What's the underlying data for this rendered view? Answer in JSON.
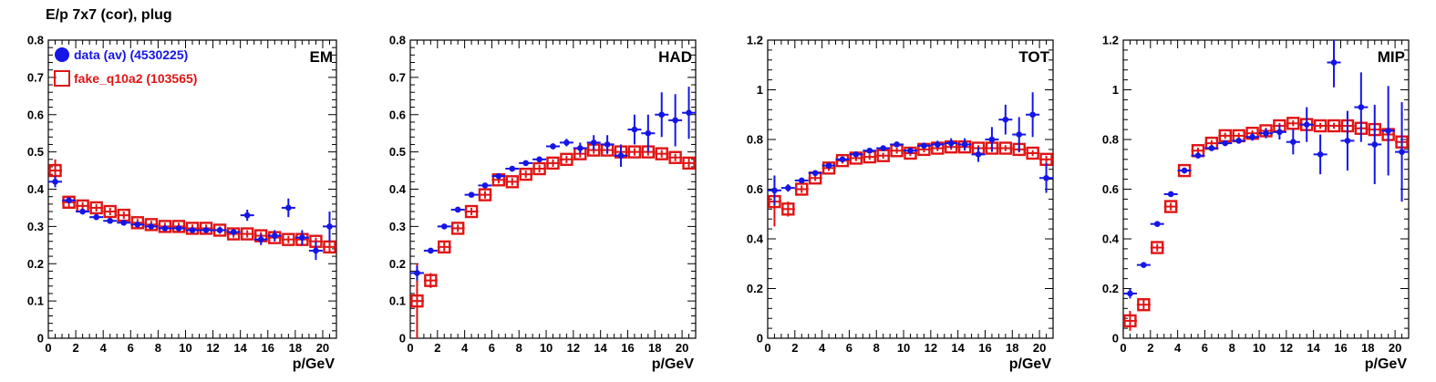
{
  "page": {
    "title": "E/p 7x7 (cor), plug"
  },
  "colors": {
    "data": "#1515e6",
    "fake": "#e01414",
    "axis": "#000000"
  },
  "chart_data": [
    {
      "type": "scatter",
      "panel_label": "EM",
      "xlabel": "p/GeV",
      "ylabel": "",
      "xlim": [
        0,
        21
      ],
      "ylim": [
        0,
        0.8
      ],
      "xticks": [
        "0",
        "2",
        "4",
        "6",
        "8",
        "10",
        "12",
        "14",
        "16",
        "18",
        "20"
      ],
      "yticks": [
        "0",
        "0.1",
        "0.2",
        "0.3",
        "0.4",
        "0.5",
        "0.6",
        "0.7",
        "0.8"
      ],
      "legend": {
        "placement": "top-left",
        "entries": [
          {
            "text": "data (av) (4530225)",
            "series": "data"
          },
          {
            "text": "fake_q10a2 (103565)",
            "series": "fake"
          }
        ]
      },
      "series": [
        {
          "name": "data (av) (4530225)",
          "marker": "filled-circle",
          "x": [
            0.5,
            1.5,
            2.5,
            3.5,
            4.5,
            5.5,
            6.5,
            7.5,
            8.5,
            9.5,
            10.5,
            11.5,
            12.5,
            13.5,
            14.5,
            15.5,
            16.5,
            17.5,
            18.5,
            19.5,
            20.5
          ],
          "y": [
            0.42,
            0.37,
            0.34,
            0.325,
            0.315,
            0.31,
            0.305,
            0.3,
            0.295,
            0.295,
            0.29,
            0.29,
            0.29,
            0.285,
            0.33,
            0.265,
            0.275,
            0.35,
            0.27,
            0.235,
            0.3
          ],
          "err": [
            0.015,
            0.008,
            0.005,
            0.005,
            0.005,
            0.005,
            0.005,
            0.005,
            0.005,
            0.005,
            0.005,
            0.005,
            0.006,
            0.008,
            0.015,
            0.015,
            0.015,
            0.025,
            0.02,
            0.025,
            0.04
          ]
        },
        {
          "name": "fake_q10a2 (103565)",
          "marker": "open-square",
          "x": [
            0.5,
            1.5,
            2.5,
            3.5,
            4.5,
            5.5,
            6.5,
            7.5,
            8.5,
            9.5,
            10.5,
            11.5,
            12.5,
            13.5,
            14.5,
            15.5,
            16.5,
            17.5,
            18.5,
            19.5,
            20.5
          ],
          "y": [
            0.45,
            0.365,
            0.355,
            0.35,
            0.34,
            0.33,
            0.31,
            0.305,
            0.3,
            0.3,
            0.295,
            0.295,
            0.29,
            0.28,
            0.28,
            0.275,
            0.27,
            0.265,
            0.265,
            0.26,
            0.245
          ],
          "err": [
            0.03,
            0.015,
            0.01,
            0.01,
            0.01,
            0.01,
            0.01,
            0.01,
            0.01,
            0.01,
            0.01,
            0.01,
            0.01,
            0.01,
            0.01,
            0.01,
            0.01,
            0.01,
            0.01,
            0.01,
            0.015
          ]
        }
      ]
    },
    {
      "type": "scatter",
      "panel_label": "HAD",
      "xlabel": "p/GeV",
      "ylabel": "",
      "xlim": [
        0,
        21
      ],
      "ylim": [
        0,
        0.8
      ],
      "xticks": [
        "0",
        "2",
        "4",
        "6",
        "8",
        "10",
        "12",
        "14",
        "16",
        "18",
        "20"
      ],
      "yticks": [
        "0",
        "0.1",
        "0.2",
        "0.3",
        "0.4",
        "0.5",
        "0.6",
        "0.7",
        "0.8"
      ],
      "series": [
        {
          "name": "data (av) (4530225)",
          "marker": "filled-circle",
          "x": [
            0.5,
            1.5,
            2.5,
            3.5,
            4.5,
            5.5,
            6.5,
            7.5,
            8.5,
            9.5,
            10.5,
            11.5,
            12.5,
            13.5,
            14.5,
            15.5,
            16.5,
            17.5,
            18.5,
            19.5,
            20.5
          ],
          "y": [
            0.175,
            0.235,
            0.3,
            0.345,
            0.385,
            0.41,
            0.435,
            0.455,
            0.47,
            0.48,
            0.515,
            0.525,
            0.51,
            0.525,
            0.52,
            0.49,
            0.56,
            0.55,
            0.6,
            0.585,
            0.605
          ],
          "err": [
            0.02,
            0.006,
            0.005,
            0.005,
            0.005,
            0.005,
            0.005,
            0.005,
            0.006,
            0.006,
            0.008,
            0.01,
            0.015,
            0.02,
            0.025,
            0.03,
            0.04,
            0.05,
            0.06,
            0.07,
            0.07
          ]
        },
        {
          "name": "fake_q10a2 (103565)",
          "marker": "open-square",
          "x": [
            0.5,
            1.5,
            2.5,
            3.5,
            4.5,
            5.5,
            6.5,
            7.5,
            8.5,
            9.5,
            10.5,
            11.5,
            12.5,
            13.5,
            14.5,
            15.5,
            16.5,
            17.5,
            18.5,
            19.5,
            20.5
          ],
          "y": [
            0.1,
            0.155,
            0.245,
            0.295,
            0.34,
            0.385,
            0.425,
            0.42,
            0.44,
            0.455,
            0.47,
            0.48,
            0.495,
            0.505,
            0.505,
            0.5,
            0.5,
            0.5,
            0.495,
            0.485,
            0.47
          ],
          "err": [
            0.1,
            0.02,
            0.012,
            0.01,
            0.01,
            0.01,
            0.01,
            0.01,
            0.01,
            0.01,
            0.01,
            0.01,
            0.01,
            0.01,
            0.01,
            0.01,
            0.01,
            0.01,
            0.01,
            0.01,
            0.012
          ]
        }
      ]
    },
    {
      "type": "scatter",
      "panel_label": "TOT",
      "xlabel": "p/GeV",
      "ylabel": "",
      "xlim": [
        0,
        21
      ],
      "ylim": [
        0,
        1.2
      ],
      "xticks": [
        "0",
        "2",
        "4",
        "6",
        "8",
        "10",
        "12",
        "14",
        "16",
        "18",
        "20"
      ],
      "yticks": [
        "0",
        "0.2",
        "0.4",
        "0.6",
        "0.8",
        "1",
        "1.2"
      ],
      "series": [
        {
          "name": "data (av) (4530225)",
          "marker": "filled-circle",
          "x": [
            0.5,
            1.5,
            2.5,
            3.5,
            4.5,
            5.5,
            6.5,
            7.5,
            8.5,
            9.5,
            10.5,
            11.5,
            12.5,
            13.5,
            14.5,
            15.5,
            16.5,
            17.5,
            18.5,
            19.5,
            20.5
          ],
          "y": [
            0.595,
            0.605,
            0.635,
            0.665,
            0.695,
            0.72,
            0.74,
            0.755,
            0.765,
            0.78,
            0.755,
            0.775,
            0.78,
            0.785,
            0.78,
            0.74,
            0.8,
            0.88,
            0.82,
            0.9,
            0.645
          ],
          "err": [
            0.06,
            0.015,
            0.01,
            0.008,
            0.008,
            0.008,
            0.008,
            0.008,
            0.008,
            0.01,
            0.01,
            0.012,
            0.015,
            0.02,
            0.025,
            0.03,
            0.05,
            0.06,
            0.07,
            0.09,
            0.06
          ]
        },
        {
          "name": "fake_q10a2 (103565)",
          "marker": "open-square",
          "x": [
            0.5,
            1.5,
            2.5,
            3.5,
            4.5,
            5.5,
            6.5,
            7.5,
            8.5,
            9.5,
            10.5,
            11.5,
            12.5,
            13.5,
            14.5,
            15.5,
            16.5,
            17.5,
            18.5,
            19.5,
            20.5
          ],
          "y": [
            0.55,
            0.52,
            0.6,
            0.645,
            0.685,
            0.715,
            0.725,
            0.73,
            0.735,
            0.755,
            0.745,
            0.76,
            0.765,
            0.77,
            0.77,
            0.765,
            0.765,
            0.765,
            0.76,
            0.745,
            0.72
          ],
          "err": [
            0.1,
            0.03,
            0.015,
            0.012,
            0.012,
            0.012,
            0.012,
            0.012,
            0.012,
            0.012,
            0.012,
            0.012,
            0.012,
            0.012,
            0.012,
            0.012,
            0.012,
            0.012,
            0.012,
            0.012,
            0.015
          ]
        }
      ]
    },
    {
      "type": "scatter",
      "panel_label": "MIP",
      "xlabel": "p/GeV",
      "ylabel": "",
      "xlim": [
        0,
        21
      ],
      "ylim": [
        0,
        1.2
      ],
      "xticks": [
        "0",
        "2",
        "4",
        "6",
        "8",
        "10",
        "12",
        "14",
        "16",
        "18",
        "20"
      ],
      "yticks": [
        "0",
        "0.2",
        "0.4",
        "0.6",
        "0.8",
        "1",
        "1.2"
      ],
      "series": [
        {
          "name": "data (av) (4530225)",
          "marker": "filled-circle",
          "x": [
            0.5,
            1.5,
            2.5,
            3.5,
            4.5,
            5.5,
            6.5,
            7.5,
            8.5,
            9.5,
            10.5,
            11.5,
            12.5,
            13.5,
            14.5,
            15.5,
            16.5,
            17.5,
            18.5,
            19.5,
            20.5
          ],
          "y": [
            0.18,
            0.295,
            0.46,
            0.58,
            0.675,
            0.735,
            0.765,
            0.785,
            0.795,
            0.81,
            0.825,
            0.83,
            0.79,
            0.86,
            0.74,
            1.11,
            0.795,
            0.93,
            0.78,
            0.835,
            0.75
          ],
          "err": [
            0.02,
            0.01,
            0.01,
            0.008,
            0.008,
            0.008,
            0.01,
            0.01,
            0.012,
            0.015,
            0.02,
            0.03,
            0.05,
            0.07,
            0.08,
            0.1,
            0.12,
            0.14,
            0.16,
            0.18,
            0.2
          ]
        },
        {
          "name": "fake_q10a2 (103565)",
          "marker": "open-square",
          "x": [
            0.5,
            1.5,
            2.5,
            3.5,
            4.5,
            5.5,
            6.5,
            7.5,
            8.5,
            9.5,
            10.5,
            11.5,
            12.5,
            13.5,
            14.5,
            15.5,
            16.5,
            17.5,
            18.5,
            19.5,
            20.5
          ],
          "y": [
            0.07,
            0.135,
            0.365,
            0.53,
            0.675,
            0.755,
            0.785,
            0.815,
            0.815,
            0.825,
            0.835,
            0.855,
            0.865,
            0.86,
            0.855,
            0.855,
            0.855,
            0.845,
            0.84,
            0.82,
            0.79
          ],
          "err": [
            0.04,
            0.02,
            0.015,
            0.015,
            0.012,
            0.012,
            0.012,
            0.012,
            0.012,
            0.012,
            0.012,
            0.012,
            0.012,
            0.012,
            0.012,
            0.012,
            0.012,
            0.012,
            0.012,
            0.012,
            0.015
          ]
        }
      ]
    }
  ]
}
